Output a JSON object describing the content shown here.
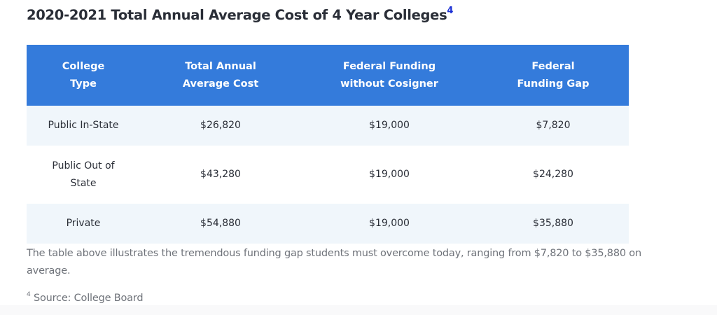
{
  "title": {
    "text": "2020-2021 Total Annual Average Cost of 4 Year Colleges",
    "footnote_ref": "4"
  },
  "table": {
    "headers": [
      {
        "line1": "College",
        "line2": "Type"
      },
      {
        "line1": "Total Annual",
        "line2": "Average Cost"
      },
      {
        "line1": "Federal Funding",
        "line2": "without Cosigner"
      },
      {
        "line1": "Federal",
        "line2": "Funding Gap"
      }
    ],
    "rows": [
      {
        "type_line1": "Public In-State",
        "type_line2": "",
        "cost": "$26,820",
        "funding": "$19,000",
        "gap": "$7,820"
      },
      {
        "type_line1": "Public Out of",
        "type_line2": "State",
        "cost": "$43,280",
        "funding": "$19,000",
        "gap": "$24,280"
      },
      {
        "type_line1": "Private",
        "type_line2": "",
        "cost": "$54,880",
        "funding": "$19,000",
        "gap": "$35,880"
      }
    ]
  },
  "note": "The table above illustrates the tremendous funding gap students must overcome today, ranging from $7,820 to $35,880 on average.",
  "source": {
    "footnote_num": "4",
    "text": " Source: College Board"
  },
  "colors": {
    "header_bg": "#347bdb",
    "row_alt_bg": "#f0f6fb",
    "title_text": "#2a2e37",
    "footnote_ref": "#1a2fd4",
    "note_text": "#6f737a"
  }
}
